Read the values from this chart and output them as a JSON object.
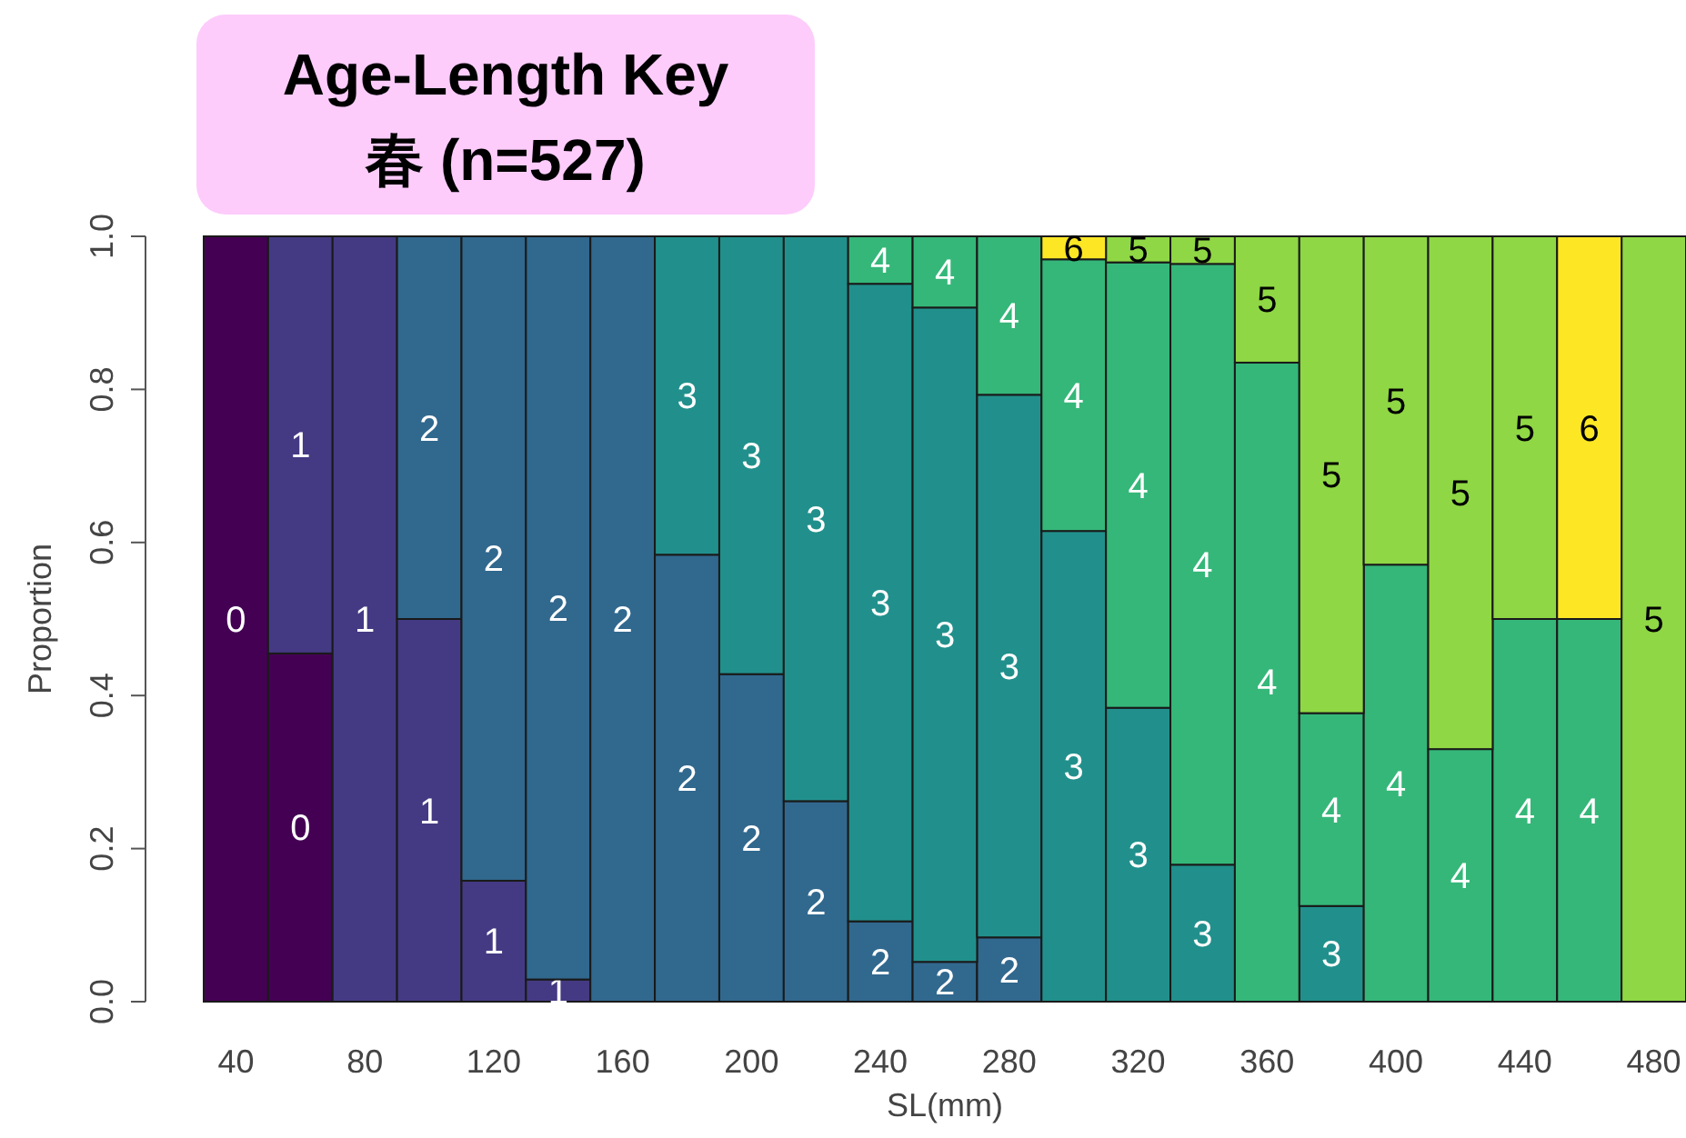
{
  "chart_data": {
    "type": "bar",
    "stacked": true,
    "title": "Age-Length Key",
    "subtitle": "春 (n=527)",
    "xlabel": "SL(mm)",
    "ylabel": "Proportion",
    "categories": [
      "40",
      null,
      "80",
      null,
      "120",
      null,
      "160",
      null,
      "200",
      null,
      "240",
      null,
      "280",
      null,
      "320",
      null,
      "360",
      null,
      "400",
      null,
      "440",
      null,
      "480"
    ],
    "ylim": [
      0,
      1
    ],
    "yticks": [
      {
        "value": 0,
        "label": "0.0"
      },
      0.2,
      0.4,
      0.6,
      0.8,
      {
        "value": 1,
        "label": "1.0"
      }
    ],
    "series": [
      {
        "name": "0",
        "color": "#440154",
        "values": [
          1.0,
          0.455,
          null,
          null,
          null,
          null,
          null,
          null,
          null,
          null,
          null,
          null,
          null,
          null,
          null,
          null,
          null,
          null,
          null,
          null,
          null,
          null,
          null
        ]
      },
      {
        "name": "1",
        "color": "#443a83",
        "values": [
          null,
          0.545,
          1.0,
          0.5,
          0.158,
          0.029,
          null,
          null,
          null,
          null,
          null,
          null,
          null,
          null,
          null,
          null,
          null,
          null,
          null,
          null,
          null,
          null,
          null
        ]
      },
      {
        "name": "2",
        "color": "#31688e",
        "values": [
          null,
          null,
          null,
          0.5,
          0.842,
          0.971,
          1.0,
          0.584,
          0.428,
          0.262,
          0.105,
          0.052,
          0.084,
          null,
          null,
          null,
          null,
          null,
          null,
          null,
          null,
          null,
          null
        ]
      },
      {
        "name": "3",
        "color": "#21908c",
        "values": [
          null,
          null,
          null,
          null,
          null,
          null,
          null,
          0.416,
          0.572,
          0.738,
          0.833,
          0.855,
          0.709,
          0.615,
          0.384,
          0.179,
          null,
          0.125,
          null,
          null,
          null,
          null,
          null
        ]
      },
      {
        "name": "4",
        "color": "#35b779",
        "values": [
          null,
          null,
          null,
          null,
          null,
          null,
          null,
          null,
          null,
          null,
          0.062,
          0.093,
          0.207,
          0.355,
          0.582,
          0.785,
          0.835,
          0.252,
          0.571,
          0.33,
          0.5,
          0.5,
          null
        ]
      },
      {
        "name": "5",
        "color": "#8fd744",
        "values": [
          null,
          null,
          null,
          null,
          null,
          null,
          null,
          null,
          null,
          null,
          null,
          null,
          null,
          null,
          0.034,
          0.036,
          0.165,
          0.623,
          0.429,
          0.67,
          0.5,
          null,
          1.0
        ]
      },
      {
        "name": "6",
        "color": "#fde725",
        "values": [
          null,
          null,
          null,
          null,
          null,
          null,
          null,
          null,
          null,
          null,
          null,
          null,
          null,
          0.03,
          null,
          null,
          null,
          null,
          null,
          null,
          null,
          0.5,
          null
        ]
      }
    ]
  }
}
